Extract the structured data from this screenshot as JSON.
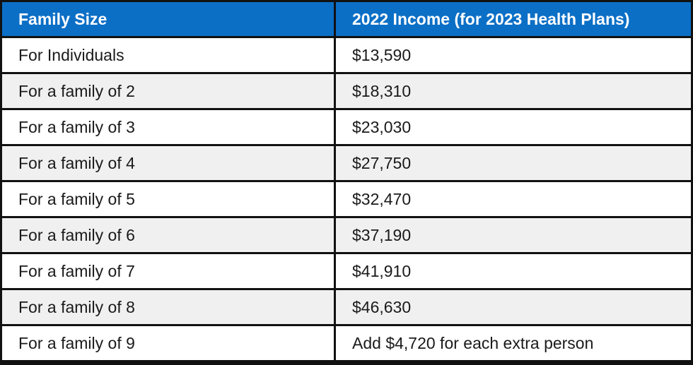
{
  "table": {
    "headers": [
      "Family Size",
      "2022 Income (for 2023 Health Plans)"
    ],
    "rows": [
      [
        "For Individuals",
        "$13,590"
      ],
      [
        "For a family of 2",
        "$18,310"
      ],
      [
        "For a family of 3",
        "$23,030"
      ],
      [
        "For a family of 4",
        "$27,750"
      ],
      [
        "For a family of 5",
        "$32,470"
      ],
      [
        "For a family of 6",
        "$37,190"
      ],
      [
        "For a family of 7",
        "$41,910"
      ],
      [
        "For a family of 8",
        "$46,630"
      ],
      [
        "For a family of 9",
        "Add $4,720 for each extra person"
      ]
    ]
  },
  "colors": {
    "header_bg": "#0b6fc6",
    "header_text": "#ffffff",
    "row_odd_bg": "#ffffff",
    "row_even_bg": "#f0f0f0",
    "border": "#111111"
  }
}
